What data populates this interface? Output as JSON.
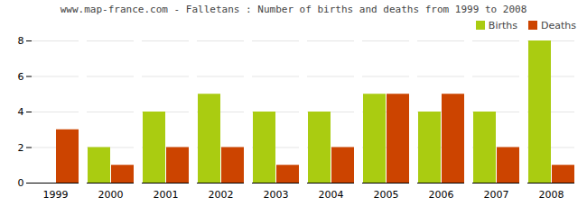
{
  "chart_data": {
    "type": "bar",
    "title": "www.map-france.com - Falletans : Number of births and deaths from 1999 to 2008",
    "categories": [
      "1999",
      "2000",
      "2001",
      "2002",
      "2003",
      "2004",
      "2005",
      "2006",
      "2007",
      "2008"
    ],
    "series": [
      {
        "name": "Births",
        "color": "#aacc11",
        "values": [
          0,
          2,
          4,
          5,
          4,
          4,
          5,
          4,
          4,
          8
        ]
      },
      {
        "name": "Deaths",
        "color": "#cc4400",
        "values": [
          3,
          1,
          2,
          2,
          1,
          2,
          5,
          5,
          2,
          1
        ]
      }
    ],
    "ylim": [
      0,
      8
    ],
    "yticks": [
      0,
      2,
      4,
      6,
      8
    ],
    "grid": true,
    "legend": "upper right"
  }
}
